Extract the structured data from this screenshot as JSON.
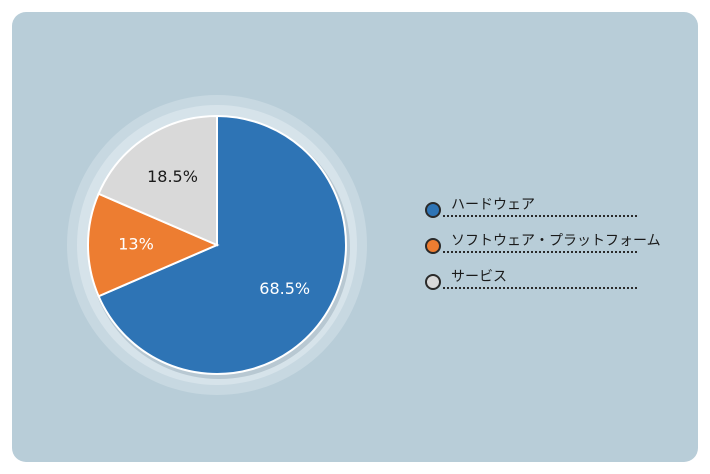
{
  "chart_data": {
    "type": "pie",
    "categories": [
      "ハードウェア",
      "ソフトウェア・プラットフォーム",
      "サービス"
    ],
    "values": [
      68.5,
      13,
      18.5
    ],
    "value_labels": [
      "68.5%",
      "13%",
      "18.5%"
    ],
    "colors": [
      "#2e74b5",
      "#ed7d31",
      "#d9d9d9"
    ],
    "label_colors": [
      "#ffffff",
      "#ffffff",
      "#1a1a1a"
    ],
    "start_angle_deg": 0,
    "direction": "clockwise",
    "legend_position": "right"
  },
  "legend": {
    "items": [
      {
        "label": "ハードウェア",
        "color": "#2e74b5"
      },
      {
        "label": "ソフトウェア・プラットフォーム",
        "color": "#ed7d31"
      },
      {
        "label": "サービス",
        "color": "#d9d9d9"
      }
    ]
  },
  "colors": {
    "card_background": "#b8cdd8",
    "ring_outer": "#c7d8e1",
    "ring_inner": "#d6e3ea"
  }
}
